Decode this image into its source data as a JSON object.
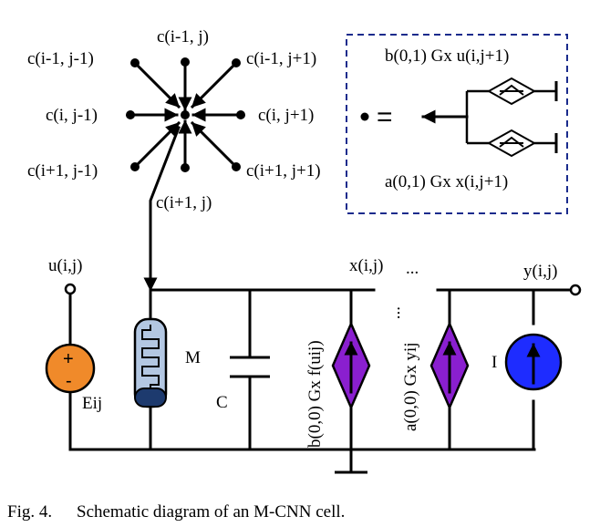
{
  "neighbors": {
    "top": "c(i-1, j)",
    "top_left": "c(i-1, j-1)",
    "top_right": "c(i-1, j+1)",
    "left": "c(i, j-1)",
    "right": "c(i, j+1)",
    "bottom_left": "c(i+1, j-1)",
    "bottom_right": "c(i+1, j+1)",
    "bottom": "c(i+1, j)"
  },
  "inset": {
    "top_label": "b(0,1) Gx u(i,j+1)",
    "bottom_label": "a(0,1) Gx x(i,j+1)",
    "equals": "="
  },
  "circuit": {
    "input_label": "u(i,j)",
    "source_plus": "+",
    "source_minus": "-",
    "source_label": "Eij",
    "memristor_label": "M",
    "capacitor_label": "C",
    "state_label": "x(i,j)",
    "dots": "...",
    "source_b_label": "b(0,0) Gx f(uij)",
    "source_a_label": "a(0,0) Gx yij",
    "current_source_label": "I",
    "output_label": "y(i,j)"
  },
  "caption": {
    "fig_label": "Fig. 4.",
    "text": "Schematic diagram of an M-CNN cell."
  },
  "colors": {
    "voltage_source": "#f08a2a",
    "memristor_body": "#b3c7e2",
    "memristor_base": "#1d3a6e",
    "dependent_source": "#8a1fcf",
    "current_source": "#1e2cff",
    "inset_border": "#1a2b8c"
  }
}
